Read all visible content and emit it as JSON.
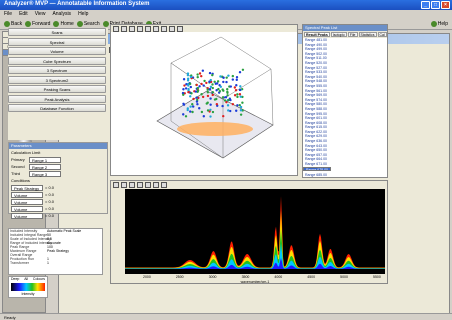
{
  "window": {
    "title": "Analyzer® MVP — Annotatable Information System"
  },
  "menu": [
    "File",
    "Edit",
    "View",
    "Analysis",
    "Help"
  ],
  "toolbar": {
    "items": [
      "Back",
      "Forward",
      "Home",
      "Search",
      "Print Database",
      "Exit"
    ],
    "right": "Help"
  },
  "sidebar": {
    "headers": [
      "Status",
      "Data",
      "Selected Database",
      "Spectral Analysis"
    ],
    "items": [
      "Analysis 1",
      "Analysis 2",
      "Analysis 3",
      "Analysis 4",
      "Analysis 5"
    ],
    "bottom": "Status"
  },
  "main": {
    "title": "Analyzer MVP",
    "tools_select": "Analyzer MVP Profile",
    "view_select": "Overview",
    "view_buttons": [
      "Scans",
      "Spectral",
      "Volume",
      "Cube Spectrum",
      "3 Spectrum",
      "3 Spectrum2",
      "Peaking Scans",
      "Peak Analysis",
      "Database Function"
    ]
  },
  "params": {
    "title": "Parameters",
    "group1": "Calculation Limit",
    "rows1": [
      {
        "label": "Primary",
        "value": "Range 1"
      },
      {
        "label": "Second",
        "value": "Range 2"
      },
      {
        "label": "Third",
        "value": "Range 3"
      }
    ],
    "group2": "Conditions",
    "rows2": [
      {
        "value": "Peak Strategy",
        "unit": "= 0.0"
      },
      {
        "value": "Volume",
        "unit": "= 0.0"
      },
      {
        "value": "Volume",
        "unit": "= 0.0"
      },
      {
        "value": "Volume",
        "unit": "= 0.0"
      },
      {
        "value": "Volume",
        "unit": "= 0.0"
      }
    ]
  },
  "properties": [
    [
      "Included Intensity",
      "Automatic Peak Scale"
    ],
    [
      "Included Integral Range",
      "50"
    ],
    [
      "Scale of Included Intensity",
      "0.5"
    ],
    [
      "Range of included intensity",
      "Accurate"
    ],
    [
      "Peak Range",
      "100"
    ],
    [
      "Maximum Range",
      "Peak Strategy"
    ],
    [
      "Overall Range",
      ""
    ],
    [
      "Production Run",
      "1"
    ],
    [
      "Transformer",
      "1"
    ]
  ],
  "colorbar": {
    "low": "Deep",
    "mid": "All",
    "high": "Colours",
    "label": "Intensity"
  },
  "peaklist": {
    "title": "Spectral Peak List",
    "tabs": [
      "Result Peaks",
      "Isotopic",
      "File",
      "Statistics",
      "Cal"
    ],
    "items": [
      "Range 481.00",
      "Range 490.00",
      "Range 499.00",
      "Range 502.00",
      "Range 511.00",
      "Range 520.00",
      "Range 527.00",
      "Range 533.00",
      "Range 540.00",
      "Range 548.00",
      "Range 555.00",
      "Range 561.00",
      "Range 569.00",
      "Range 574.00",
      "Range 580.00",
      "Range 588.00",
      "Range 595.00",
      "Range 601.00",
      "Range 608.00",
      "Range 615.00",
      "Range 622.00",
      "Range 629.00",
      "Range 636.00",
      "Range 643.00",
      "Range 650.00",
      "Range 657.00",
      "Range 664.00",
      "Range 671.00",
      "Range 678.00",
      "Range 685.00"
    ],
    "selected_index": 28
  },
  "spectrum": {
    "x_ticks": [
      "2000",
      "2500",
      "3000",
      "3500",
      "4000",
      "4500",
      "5000",
      "5500"
    ],
    "xlabel": "wavenumber/cm-1"
  },
  "status": {
    "left": "Ready"
  }
}
